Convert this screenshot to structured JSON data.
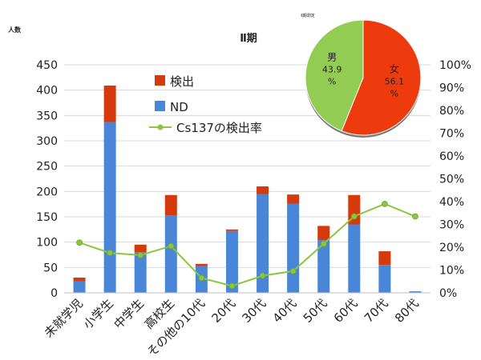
{
  "chart_data": {
    "type": "bar",
    "title": "Ⅱ期",
    "ylabel": "人数",
    "ylim": [
      0,
      450
    ],
    "y_ticks": [
      "0",
      "50",
      "100",
      "150",
      "200",
      "250",
      "300",
      "350",
      "400",
      "450"
    ],
    "y2lim": [
      0,
      100
    ],
    "y2_ticks": [
      "0%",
      "10%",
      "20%",
      "30%",
      "40%",
      "50%",
      "60%",
      "70%",
      "80%",
      "90%",
      "100%"
    ],
    "categories": [
      "未就学児",
      "小学生",
      "中学生",
      "高校生",
      "その他の10代",
      "20代",
      "30代",
      "40代",
      "50代",
      "60代",
      "70代",
      "80代"
    ],
    "series": [
      {
        "name": "ND",
        "type": "bar",
        "axis": "left",
        "color": "#4a86d8",
        "values": [
          23,
          337,
          80,
          153,
          53,
          122,
          195,
          176,
          104,
          135,
          55,
          3
        ]
      },
      {
        "name": "検出",
        "type": "bar",
        "axis": "left",
        "color": "#d43a0c",
        "values": [
          7,
          72,
          15,
          40,
          4,
          3,
          15,
          18,
          28,
          58,
          27,
          0
        ]
      },
      {
        "name": "Cs137の検出率",
        "type": "line",
        "axis": "right",
        "color": "#8cc63f",
        "values": [
          22,
          17.5,
          16.5,
          20.5,
          6.5,
          3,
          7.5,
          9.5,
          21.5,
          33.5,
          39,
          33.5
        ]
      }
    ],
    "legend_position": "top-center",
    "grid": true,
    "inset_pie": {
      "title": "Ⅱ期測定",
      "slices": [
        {
          "label": "女",
          "value": 56.1,
          "value_text": "56.1",
          "unit": "%",
          "color": "#ee3b0e"
        },
        {
          "label": "男",
          "value": 43.9,
          "value_text": "43.9",
          "unit": "%",
          "color": "#92cc52"
        }
      ]
    }
  }
}
